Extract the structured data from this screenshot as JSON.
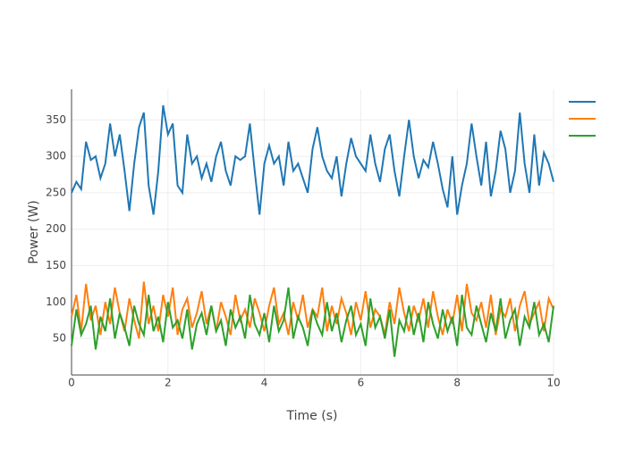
{
  "chart_data": {
    "type": "line",
    "xlabel": "Time (s)",
    "ylabel": "Power (W)",
    "x": [
      0,
      0.1,
      0.2,
      0.3,
      0.4,
      0.5,
      0.6,
      0.7,
      0.8,
      0.9,
      1,
      1.1,
      1.2,
      1.3,
      1.4,
      1.5,
      1.6,
      1.7,
      1.8,
      1.9,
      2,
      2.1,
      2.2,
      2.3,
      2.4,
      2.5,
      2.6,
      2.7,
      2.8,
      2.9,
      3,
      3.1,
      3.2,
      3.3,
      3.4,
      3.5,
      3.6,
      3.7,
      3.8,
      3.9,
      4,
      4.1,
      4.2,
      4.3,
      4.4,
      4.5,
      4.6,
      4.7,
      4.8,
      4.9,
      5,
      5.1,
      5.2,
      5.3,
      5.4,
      5.5,
      5.6,
      5.7,
      5.8,
      5.9,
      6,
      6.1,
      6.2,
      6.3,
      6.4,
      6.5,
      6.6,
      6.7,
      6.8,
      6.9,
      7,
      7.1,
      7.2,
      7.3,
      7.4,
      7.5,
      7.6,
      7.7,
      7.8,
      7.9,
      8,
      8.1,
      8.2,
      8.3,
      8.4,
      8.5,
      8.6,
      8.7,
      8.8,
      8.9,
      9,
      9.1,
      9.2,
      9.3,
      9.4,
      9.5,
      9.6,
      9.7,
      9.8,
      9.9,
      10
    ],
    "series": [
      {
        "color": "#1f77b4",
        "values": [
          250,
          265,
          255,
          320,
          295,
          300,
          270,
          290,
          345,
          300,
          330,
          280,
          225,
          290,
          340,
          360,
          260,
          220,
          280,
          370,
          330,
          345,
          260,
          250,
          330,
          290,
          300,
          270,
          290,
          265,
          300,
          320,
          280,
          260,
          300,
          295,
          300,
          345,
          280,
          220,
          290,
          315,
          290,
          300,
          260,
          320,
          280,
          290,
          270,
          250,
          310,
          340,
          300,
          280,
          270,
          300,
          245,
          290,
          325,
          300,
          290,
          280,
          330,
          290,
          265,
          310,
          330,
          280,
          245,
          300,
          350,
          300,
          270,
          295,
          285,
          320,
          290,
          255,
          230,
          300,
          220,
          260,
          290,
          345,
          300,
          260,
          320,
          245,
          280,
          335,
          310,
          250,
          280,
          360,
          290,
          250,
          330,
          260,
          305,
          290,
          265
        ]
      },
      {
        "color": "#ff7f0e",
        "values": [
          80,
          110,
          60,
          125,
          75,
          95,
          55,
          100,
          70,
          120,
          85,
          60,
          105,
          75,
          50,
          128,
          70,
          95,
          60,
          110,
          80,
          120,
          55,
          90,
          105,
          65,
          85,
          115,
          70,
          95,
          60,
          100,
          80,
          55,
          110,
          75,
          90,
          65,
          105,
          85,
          60,
          95,
          120,
          70,
          85,
          55,
          100,
          75,
          110,
          65,
          90,
          80,
          120,
          60,
          95,
          70,
          105,
          85,
          55,
          100,
          75,
          115,
          65,
          90,
          80,
          55,
          100,
          70,
          120,
          85,
          60,
          95,
          75,
          105,
          65,
          115,
          80,
          55,
          90,
          70,
          110,
          60,
          125,
          85,
          75,
          100,
          65,
          110,
          55,
          90,
          80,
          105,
          60,
          95,
          115,
          70,
          85,
          100,
          60,
          105,
          90
        ]
      },
      {
        "color": "#2ca02c",
        "values": [
          40,
          90,
          55,
          70,
          95,
          35,
          80,
          60,
          105,
          50,
          85,
          65,
          40,
          95,
          70,
          55,
          110,
          60,
          80,
          45,
          100,
          65,
          75,
          50,
          90,
          35,
          70,
          85,
          55,
          95,
          60,
          75,
          40,
          90,
          65,
          80,
          50,
          110,
          70,
          55,
          85,
          45,
          95,
          60,
          75,
          120,
          50,
          80,
          65,
          40,
          90,
          70,
          55,
          100,
          60,
          85,
          45,
          75,
          95,
          55,
          70,
          40,
          105,
          65,
          80,
          50,
          90,
          25,
          75,
          60,
          95,
          55,
          85,
          45,
          100,
          70,
          50,
          90,
          60,
          80,
          40,
          110,
          65,
          55,
          95,
          70,
          45,
          85,
          60,
          105,
          50,
          75,
          90,
          40,
          80,
          65,
          100,
          55,
          70,
          45,
          95
        ]
      }
    ],
    "xlim": [
      0,
      10
    ],
    "xticks": [
      0,
      2,
      4,
      6,
      8,
      10
    ],
    "ylim": [
      0,
      392
    ],
    "yticks": [
      50,
      100,
      150,
      200,
      250,
      300,
      350
    ],
    "grid": true
  }
}
